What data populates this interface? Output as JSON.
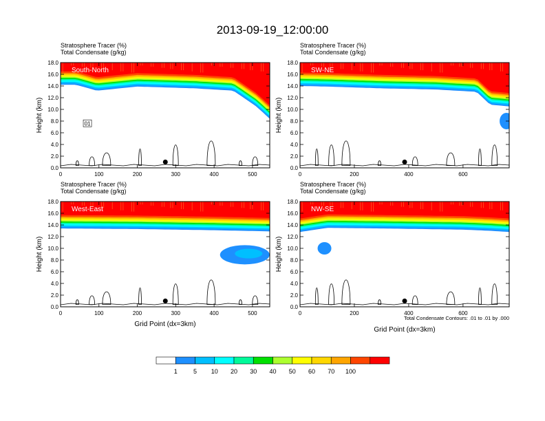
{
  "title": "2013-09-19_12:00:00",
  "chart_data": [
    {
      "type": "contour",
      "panel_label": "South-North",
      "header": [
        "Stratosphere Tracer   (%)",
        "Total Condensate   (g/kg)"
      ],
      "ylabel": "Height (km)",
      "xlabel": "",
      "xlim": [
        0,
        545
      ],
      "ylim": [
        0,
        18
      ],
      "xticks": [
        "0",
        "100",
        "200",
        "300",
        "400",
        "500"
      ],
      "xtick_values": [
        0,
        100,
        200,
        300,
        400,
        500
      ],
      "yticks": [
        "0.0",
        "2.0",
        "4.0",
        "6.0",
        "8.0",
        "10.0",
        "12.0",
        "14.0",
        "16.0",
        "18.0"
      ],
      "contour_label": "01",
      "marker_x": 273,
      "tropopause_base_km": [
        [
          0,
          14.2
        ],
        [
          40,
          14.2
        ],
        [
          95,
          13.2
        ],
        [
          200,
          13.9
        ],
        [
          350,
          13.6
        ],
        [
          450,
          13.2
        ],
        [
          510,
          10.5
        ],
        [
          545,
          8.4
        ]
      ]
    },
    {
      "type": "contour",
      "panel_label": "SW-NE",
      "header": [
        "Stratosphere Tracer   (%)",
        "Total Condensate   (g/kg)"
      ],
      "ylabel": "Height (km)",
      "xlabel": "",
      "xlim": [
        0,
        770
      ],
      "ylim": [
        0,
        18
      ],
      "xticks": [
        "0",
        "200",
        "400",
        "600"
      ],
      "xtick_values": [
        0,
        200,
        400,
        600
      ],
      "yticks": [
        "0.0",
        "2.0",
        "4.0",
        "6.0",
        "8.0",
        "10.0",
        "12.0",
        "14.0",
        "16.0",
        "18.0"
      ],
      "contour_label": "",
      "marker_x": 385,
      "tropopause_base_km": [
        [
          0,
          14.0
        ],
        [
          100,
          13.9
        ],
        [
          300,
          13.6
        ],
        [
          500,
          13.4
        ],
        [
          650,
          13.0
        ],
        [
          700,
          10.8
        ],
        [
          770,
          10.5
        ]
      ]
    },
    {
      "type": "contour",
      "panel_label": "West-East",
      "header": [
        "Stratosphere Tracer   (%)",
        "Total Condensate   (g/kg)"
      ],
      "ylabel": "Height (km)",
      "xlabel": "Grid Point (dx=3km)",
      "xlim": [
        0,
        545
      ],
      "ylim": [
        0,
        18
      ],
      "xticks": [
        "0",
        "100",
        "200",
        "300",
        "400",
        "500"
      ],
      "xtick_values": [
        0,
        100,
        200,
        300,
        400,
        500
      ],
      "yticks": [
        "0.0",
        "2.0",
        "4.0",
        "6.0",
        "8.0",
        "10.0",
        "12.0",
        "14.0",
        "16.0",
        "18.0"
      ],
      "contour_label": "",
      "marker_x": 273,
      "tropopause_base_km": [
        [
          0,
          13.4
        ],
        [
          200,
          13.3
        ],
        [
          400,
          13.1
        ],
        [
          545,
          12.9
        ]
      ]
    },
    {
      "type": "contour",
      "panel_label": "NW-SE",
      "header": [
        "Stratosphere Tracer   (%)",
        "Total Condensate   (g/kg)"
      ],
      "ylabel": "Height (km)",
      "xlabel": "Grid Point (dx=3km)",
      "xlim": [
        0,
        770
      ],
      "ylim": [
        0,
        18
      ],
      "xticks": [
        "0",
        "200",
        "400",
        "600"
      ],
      "xtick_values": [
        0,
        200,
        400,
        600
      ],
      "yticks": [
        "0.0",
        "2.0",
        "4.0",
        "6.0",
        "8.0",
        "10.0",
        "12.0",
        "14.0",
        "16.0",
        "18.0"
      ],
      "contour_label": "",
      "marker_x": 385,
      "contour_info": "Total Condensate Contours: .01 to .01 by .000",
      "tropopause_base_km": [
        [
          0,
          12.8
        ],
        [
          100,
          13.5
        ],
        [
          300,
          13.4
        ],
        [
          600,
          13.2
        ],
        [
          700,
          13.0
        ],
        [
          770,
          12.8
        ]
      ]
    }
  ],
  "colorbar": {
    "labels": [
      "1",
      "5",
      "10",
      "20",
      "30",
      "40",
      "50",
      "60",
      "70",
      "100"
    ],
    "colors": [
      "#ffffff",
      "#1e90ff",
      "#00bfff",
      "#00ffff",
      "#00fa9a",
      "#00e000",
      "#adff2f",
      "#ffff00",
      "#ffd700",
      "#ffa500",
      "#ff4500",
      "#ff0000"
    ]
  }
}
